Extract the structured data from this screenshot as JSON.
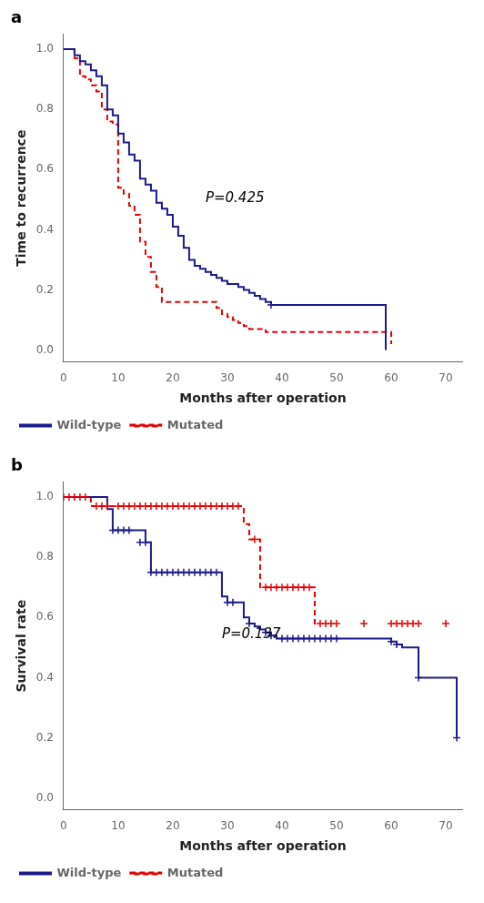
{
  "chart_data": [
    {
      "type": "line",
      "title": "a",
      "xlabel": "Months after operation",
      "ylabel": "Time to recurrence",
      "xlim": [
        0,
        73
      ],
      "ylim": [
        -0.04,
        1.05
      ],
      "xticks": [
        0,
        10,
        20,
        30,
        40,
        50,
        60,
        70
      ],
      "yticks": [
        {
          "value": 0.0,
          "label": "0.0"
        },
        0.2,
        0.4,
        0.6,
        0.8,
        {
          "value": 1.0,
          "label": "1.0"
        }
      ],
      "grid": false,
      "legend": "lower left",
      "annotations": [
        {
          "text": "P=0.425",
          "x": 26,
          "y": 0.48
        }
      ],
      "series": [
        {
          "name": "Wild-type",
          "color": "#1a1a8c",
          "line_style": "solid",
          "x": [
            0,
            2,
            3,
            4,
            5,
            6,
            7,
            8,
            9,
            10,
            11,
            12,
            13,
            14,
            15,
            16,
            17,
            18,
            19,
            20,
            21,
            22,
            23,
            24,
            25,
            26,
            27,
            28,
            29,
            30,
            31,
            32,
            33,
            34,
            35,
            36,
            37,
            38,
            57,
            59
          ],
          "values": [
            1.0,
            0.98,
            0.96,
            0.95,
            0.93,
            0.91,
            0.88,
            0.8,
            0.78,
            0.72,
            0.69,
            0.65,
            0.63,
            0.57,
            0.55,
            0.53,
            0.49,
            0.47,
            0.45,
            0.41,
            0.38,
            0.34,
            0.3,
            0.28,
            0.27,
            0.26,
            0.25,
            0.24,
            0.23,
            0.22,
            0.22,
            0.21,
            0.2,
            0.19,
            0.18,
            0.17,
            0.16,
            0.15,
            0.15,
            0.0
          ],
          "censor_x": [
            38
          ],
          "censor_y": [
            0.15
          ]
        },
        {
          "name": "Mutated",
          "color": "#e60000",
          "line_style": "dashed",
          "x": [
            0,
            2,
            3,
            4,
            5,
            6,
            7,
            8,
            9,
            10,
            11,
            12,
            13,
            14,
            15,
            16,
            17,
            18,
            28,
            29,
            30,
            31,
            32,
            33,
            34,
            35,
            37,
            38,
            39,
            56,
            60
          ],
          "values": [
            1.0,
            0.97,
            0.91,
            0.9,
            0.88,
            0.86,
            0.8,
            0.76,
            0.75,
            0.54,
            0.52,
            0.48,
            0.45,
            0.36,
            0.31,
            0.26,
            0.21,
            0.16,
            0.14,
            0.12,
            0.11,
            0.1,
            0.09,
            0.08,
            0.07,
            0.07,
            0.06,
            0.06,
            0.06,
            0.06,
            0.02
          ],
          "censor_x": [],
          "censor_y": []
        }
      ]
    },
    {
      "type": "line",
      "title": "b",
      "xlabel": "Months after operation",
      "ylabel": "Survival rate",
      "xlim": [
        0,
        73
      ],
      "ylim": [
        -0.04,
        1.05
      ],
      "xticks": [
        0,
        10,
        20,
        30,
        40,
        50,
        60,
        70
      ],
      "yticks": [
        {
          "value": 0.0,
          "label": "0.0"
        },
        0.2,
        0.4,
        0.6,
        0.8,
        {
          "value": 1.0,
          "label": "1.0"
        }
      ],
      "grid": false,
      "legend": "lower left",
      "annotations": [
        {
          "text": "P=0.137",
          "x": 29,
          "y": 0.52
        }
      ],
      "series": [
        {
          "name": "Wild-type",
          "color": "#1a1a8c",
          "line_style": "solid",
          "x": [
            0,
            8,
            9,
            15,
            16,
            29,
            30,
            32,
            33,
            34,
            35,
            36,
            37,
            38,
            39,
            59,
            60,
            61,
            62,
            65,
            70,
            72
          ],
          "values": [
            1.0,
            0.96,
            0.89,
            0.85,
            0.75,
            0.67,
            0.65,
            0.65,
            0.6,
            0.58,
            0.57,
            0.56,
            0.55,
            0.54,
            0.53,
            0.53,
            0.52,
            0.51,
            0.5,
            0.4,
            0.4,
            0.2
          ],
          "censor_x": [
            9,
            10,
            11,
            12,
            14,
            15,
            16,
            17,
            18,
            19,
            20,
            21,
            22,
            23,
            24,
            25,
            26,
            27,
            28,
            30,
            31,
            34,
            37,
            38,
            40,
            41,
            42,
            43,
            44,
            45,
            46,
            47,
            48,
            49,
            50,
            60,
            61,
            65,
            72
          ],
          "censor_y": [
            0.89,
            0.89,
            0.89,
            0.89,
            0.85,
            0.85,
            0.75,
            0.75,
            0.75,
            0.75,
            0.75,
            0.75,
            0.75,
            0.75,
            0.75,
            0.75,
            0.75,
            0.75,
            0.75,
            0.65,
            0.65,
            0.58,
            0.55,
            0.54,
            0.53,
            0.53,
            0.53,
            0.53,
            0.53,
            0.53,
            0.53,
            0.53,
            0.53,
            0.53,
            0.53,
            0.52,
            0.51,
            0.4,
            0.2
          ]
        },
        {
          "name": "Mutated",
          "color": "#e60000",
          "line_style": "dashed",
          "x": [
            0,
            5,
            9,
            33,
            34,
            36,
            46,
            47
          ],
          "values": [
            1.0,
            0.97,
            0.97,
            0.91,
            0.86,
            0.7,
            0.58,
            0.58
          ],
          "censor_x": [
            0,
            1,
            2,
            3,
            4,
            6,
            7,
            8,
            10,
            11,
            12,
            13,
            14,
            15,
            16,
            17,
            18,
            19,
            20,
            21,
            22,
            23,
            24,
            25,
            26,
            27,
            28,
            29,
            30,
            31,
            32,
            35,
            37,
            38,
            39,
            40,
            41,
            42,
            43,
            44,
            45,
            47,
            48,
            49,
            50,
            55,
            60,
            61,
            62,
            63,
            64,
            65,
            70
          ],
          "censor_y": [
            1.0,
            1.0,
            1.0,
            1.0,
            1.0,
            0.97,
            0.97,
            0.97,
            0.97,
            0.97,
            0.97,
            0.97,
            0.97,
            0.97,
            0.97,
            0.97,
            0.97,
            0.97,
            0.97,
            0.97,
            0.97,
            0.97,
            0.97,
            0.97,
            0.97,
            0.97,
            0.97,
            0.97,
            0.97,
            0.97,
            0.97,
            0.86,
            0.7,
            0.7,
            0.7,
            0.7,
            0.7,
            0.7,
            0.7,
            0.7,
            0.7,
            0.58,
            0.58,
            0.58,
            0.58,
            0.58,
            0.58,
            0.58,
            0.58,
            0.58,
            0.58,
            0.58,
            0.58
          ]
        }
      ]
    }
  ]
}
